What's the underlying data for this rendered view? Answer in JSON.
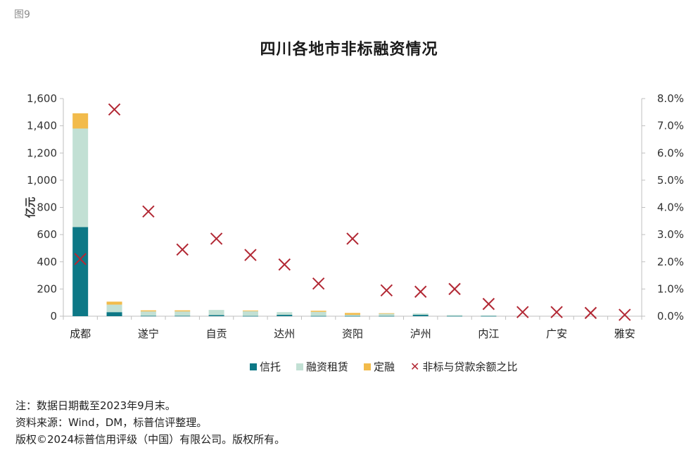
{
  "figure_label": "图9",
  "colors": {
    "trust": "#0d7886",
    "leasing": "#c2e0d4",
    "directional": "#f2bb4b",
    "ratio": "#b22834",
    "axis": "#bfbfbf"
  },
  "chart_data": {
    "type": "bar",
    "stacked": true,
    "title": "四川各地市非标融资情况",
    "ylabel": "亿元",
    "ylim": [
      0,
      1600
    ],
    "y_ticks": [
      "0",
      "200",
      "400",
      "600",
      "800",
      "1,000",
      "1,200",
      "1,400",
      "1,600"
    ],
    "y2lim": [
      0,
      8
    ],
    "y2_ticks": [
      "0.0%",
      "1.0%",
      "2.0%",
      "3.0%",
      "4.0%",
      "5.0%",
      "6.0%",
      "7.0%",
      "8.0%"
    ],
    "x_tick_labels": [
      "成都",
      "遂宁",
      "自贡",
      "达州",
      "资阳",
      "泸州",
      "内江",
      "广安",
      "雅安"
    ],
    "x_tick_positions": [
      0,
      2,
      4,
      6,
      8,
      10,
      12,
      14,
      16
    ],
    "category_count": 17,
    "series": [
      {
        "name": "信托",
        "color_key": "trust",
        "values": [
          655,
          30,
          3,
          3,
          8,
          2,
          10,
          2,
          2,
          2,
          10,
          2,
          2,
          0,
          0,
          0,
          0
        ]
      },
      {
        "name": "融资租赁",
        "color_key": "leasing",
        "values": [
          725,
          55,
          32,
          32,
          38,
          35,
          20,
          30,
          8,
          18,
          10,
          6,
          4,
          0,
          0,
          0,
          0
        ]
      },
      {
        "name": "定融",
        "color_key": "directional",
        "values": [
          112,
          22,
          8,
          8,
          0,
          5,
          0,
          8,
          14,
          2,
          0,
          0,
          0,
          0,
          0,
          0,
          0
        ]
      }
    ],
    "line_series": {
      "name": "非标与贷款余额之比",
      "axis": "right",
      "marker": "x",
      "values": [
        2.1,
        7.6,
        3.85,
        2.45,
        2.85,
        2.25,
        1.9,
        1.2,
        2.85,
        0.95,
        0.9,
        1.0,
        0.45,
        0.15,
        0.15,
        0.12,
        0.05
      ]
    }
  },
  "legend": {
    "trust": "信托",
    "leasing": "融资租赁",
    "directional": "定融",
    "ratio": "非标与贷款余额之比"
  },
  "notes": {
    "line1": "注：数据日期截至2023年9月末。",
    "line2": "资料来源：Wind，DM，标普信评整理。",
    "line3": "版权©2024标普信用评级（中国）有限公司。版权所有。"
  }
}
